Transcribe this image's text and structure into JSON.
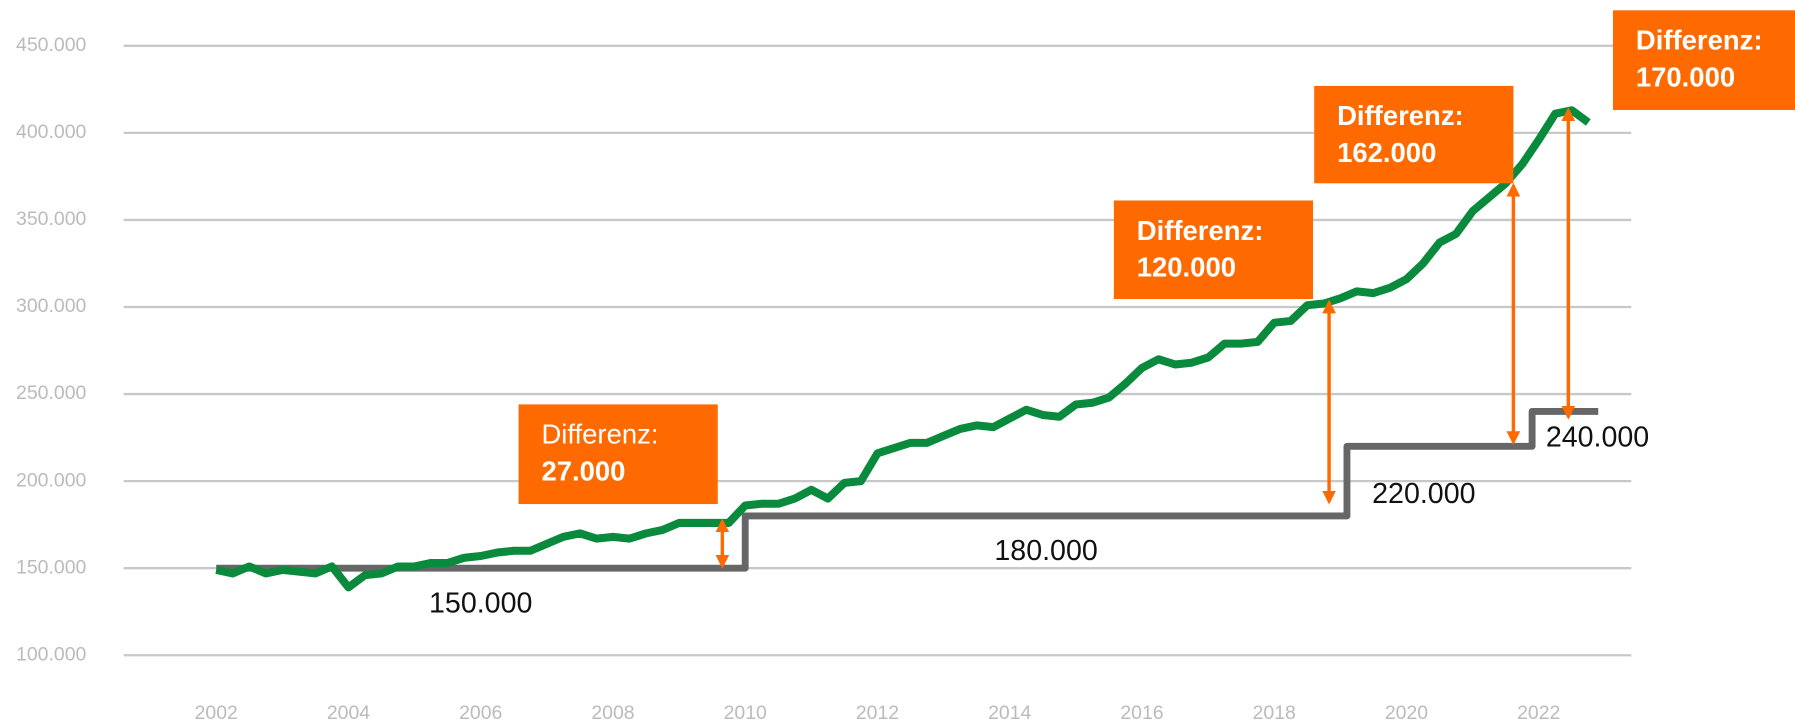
{
  "chart_data": {
    "type": "line",
    "xlim": [
      2000.6,
      2023.4
    ],
    "xticks": [
      2002,
      2004,
      2006,
      2008,
      2010,
      2012,
      2014,
      2016,
      2018,
      2020,
      2022
    ],
    "ylim": [
      100000,
      450000
    ],
    "yticks": [
      {
        "value": 100000,
        "label": "100.000"
      },
      {
        "value": 150000,
        "label": "150.000"
      },
      {
        "value": 200000,
        "label": "200.000"
      },
      {
        "value": 250000,
        "label": "250.000"
      },
      {
        "value": 300000,
        "label": "300.000"
      },
      {
        "value": 350000,
        "label": "350.000"
      },
      {
        "value": 400000,
        "label": "400.000"
      },
      {
        "value": 450000,
        "label": "450.000"
      }
    ],
    "grid": true,
    "series": [
      {
        "color": "#0a8a3c",
        "x": [
          2002,
          2002.25,
          2002.5,
          2002.75,
          2003,
          2003.25,
          2003.5,
          2003.75,
          2004,
          2004.25,
          2004.5,
          2004.75,
          2005,
          2005.25,
          2005.5,
          2005.75,
          2006,
          2006.25,
          2006.5,
          2006.75,
          2007,
          2007.25,
          2007.5,
          2007.75,
          2008,
          2008.25,
          2008.5,
          2008.75,
          2009,
          2009.25,
          2009.5,
          2009.75,
          2010,
          2010.25,
          2010.5,
          2010.75,
          2011,
          2011.25,
          2011.5,
          2011.75,
          2012,
          2012.25,
          2012.5,
          2012.75,
          2013,
          2013.25,
          2013.5,
          2013.75,
          2014,
          2014.25,
          2014.5,
          2014.75,
          2015,
          2015.25,
          2015.5,
          2015.75,
          2016,
          2016.25,
          2016.5,
          2016.75,
          2017,
          2017.25,
          2017.5,
          2017.75,
          2018,
          2018.25,
          2018.5,
          2018.75,
          2019,
          2019.25,
          2019.5,
          2019.75,
          2020,
          2020.25,
          2020.5,
          2020.75,
          2021,
          2021.25,
          2021.5,
          2021.75,
          2022,
          2022.25,
          2022.5,
          2022.75
        ],
        "values": [
          149000,
          147000,
          151000,
          147000,
          149000,
          148000,
          147000,
          151000,
          139000,
          146000,
          147000,
          151000,
          151000,
          153000,
          153000,
          156000,
          157000,
          159000,
          160000,
          160000,
          164000,
          168000,
          170000,
          167000,
          168000,
          167000,
          170000,
          172000,
          176000,
          176000,
          176000,
          176000,
          186000,
          187000,
          187000,
          190000,
          195000,
          190000,
          199000,
          200000,
          216000,
          219000,
          222000,
          222000,
          226000,
          230000,
          232000,
          231000,
          236000,
          241000,
          238000,
          237000,
          244000,
          245000,
          248000,
          256000,
          265000,
          270000,
          267000,
          268000,
          271000,
          279000,
          279000,
          280000,
          291000,
          292000,
          301000,
          302000,
          305000,
          309000,
          308000,
          311000,
          316000,
          325000,
          337000,
          342000,
          355000,
          363000,
          371000,
          382000,
          396000,
          411000,
          413000,
          406000
        ]
      },
      {
        "color": "#666666",
        "step": "post",
        "x": [
          2002,
          2010,
          2019.1,
          2021.9,
          2022.9
        ],
        "values": [
          150000,
          180000,
          220000,
          240000,
          240000
        ],
        "value_labels": [
          "150.000",
          "180.000",
          "220.000",
          "240.000",
          null
        ]
      }
    ],
    "annotations": [
      {
        "title": "Differenz:",
        "value": "27.000"
      },
      {
        "title": "Differenz:",
        "value": "120.000"
      },
      {
        "title": "Differenz:",
        "value": "162.000"
      },
      {
        "title": "Differenz:",
        "value": "170.000"
      }
    ]
  }
}
